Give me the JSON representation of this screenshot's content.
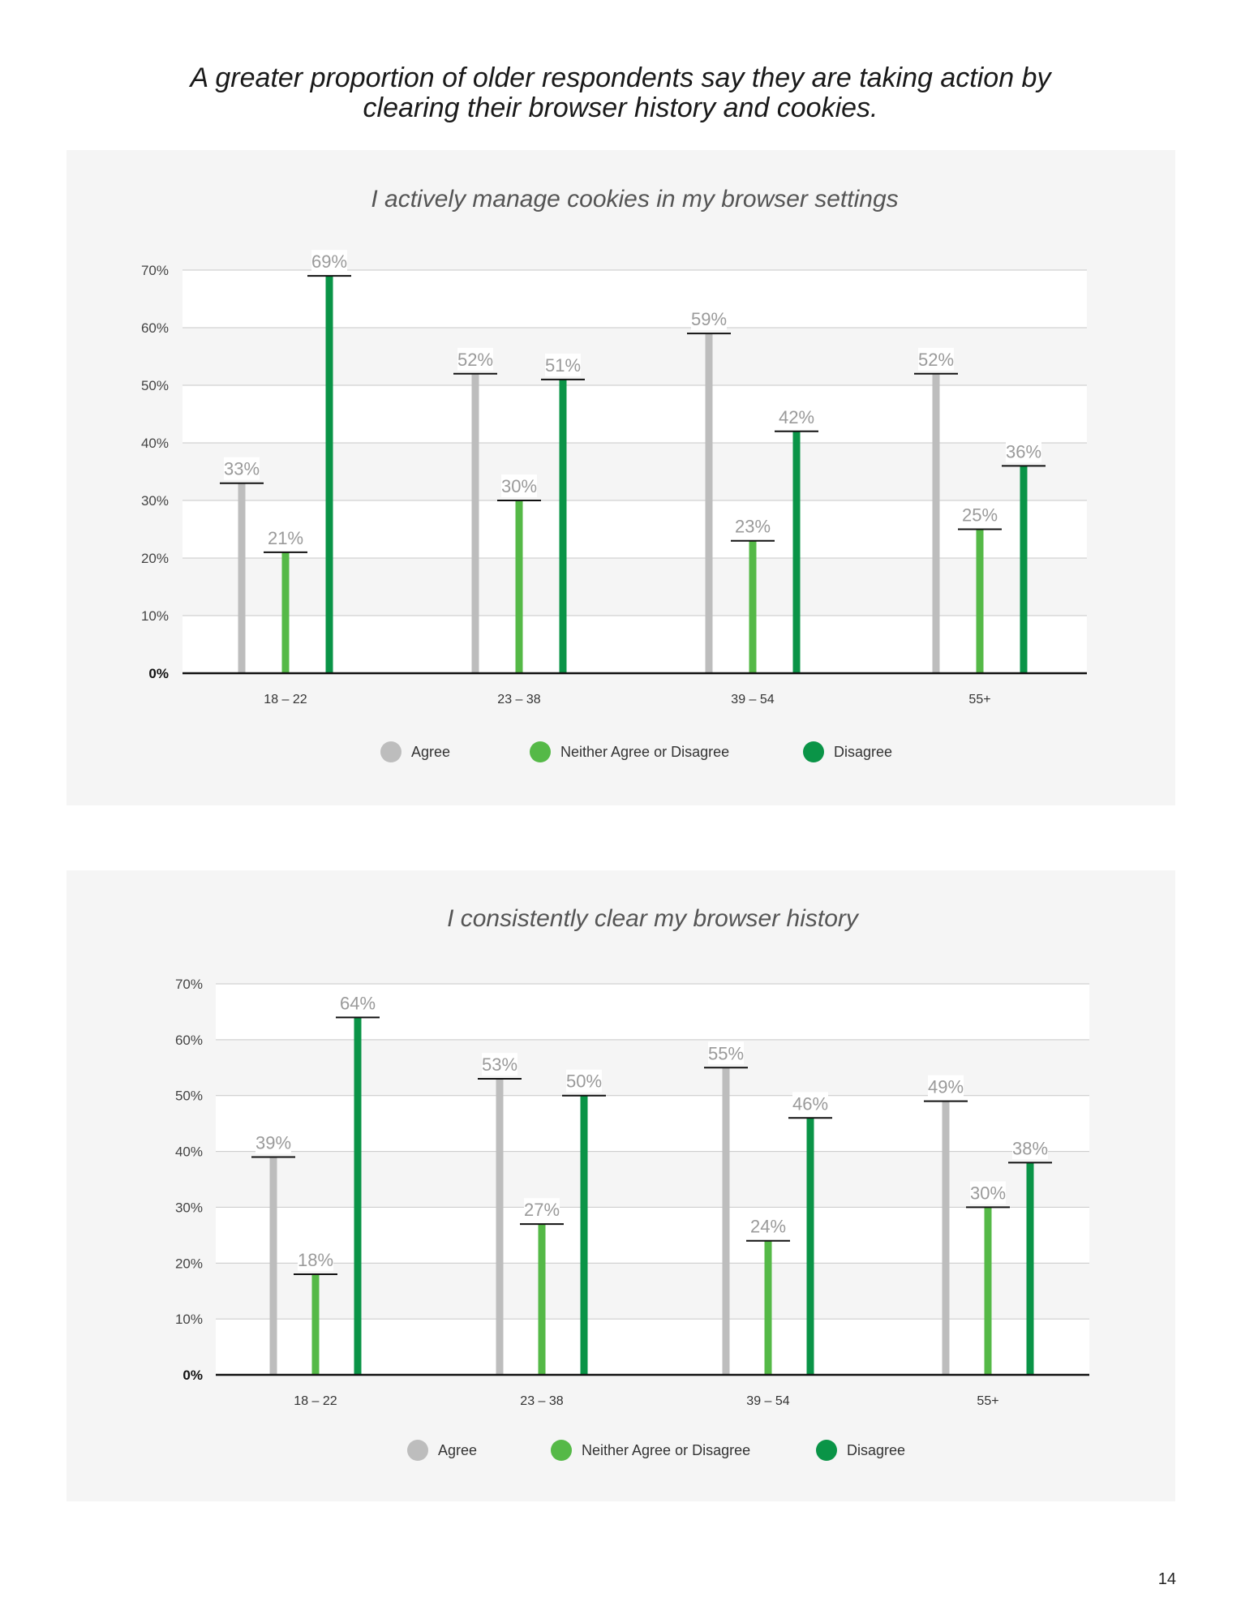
{
  "page": {
    "title_line1": "A greater proportion of older respondents say they are taking action by",
    "title_line2": "clearing their browser history and cookies.",
    "page_number": "14"
  },
  "colors": {
    "agree": "#bdbdbd",
    "neither": "#55b947",
    "disagree": "#0a9447"
  },
  "chart_data": [
    {
      "type": "bar",
      "title": "I actively manage cookies in my browser settings",
      "categories": [
        "18 – 22",
        "23 – 38",
        "39 – 54",
        "55+"
      ],
      "series": [
        {
          "name": "Agree",
          "values": [
            33,
            52,
            59,
            52
          ]
        },
        {
          "name": "Neither Agree or Disagree",
          "values": [
            21,
            30,
            23,
            25
          ]
        },
        {
          "name": "Disagree",
          "values": [
            69,
            51,
            42,
            36
          ]
        }
      ],
      "ylim": [
        0,
        70
      ],
      "yticks": [
        "0%",
        "10%",
        "20%",
        "30%",
        "40%",
        "50%",
        "60%",
        "70%"
      ],
      "unit": "%",
      "grid": true,
      "legend_position": "bottom"
    },
    {
      "type": "bar",
      "title": "I consistently clear my browser history",
      "categories": [
        "18 – 22",
        "23 – 38",
        "39 – 54",
        "55+"
      ],
      "series": [
        {
          "name": "Agree",
          "values": [
            39,
            53,
            55,
            49
          ]
        },
        {
          "name": "Neither Agree or Disagree",
          "values": [
            18,
            27,
            24,
            30
          ]
        },
        {
          "name": "Disagree",
          "values": [
            64,
            50,
            46,
            38
          ]
        }
      ],
      "ylim": [
        0,
        70
      ],
      "yticks": [
        "0%",
        "10%",
        "20%",
        "30%",
        "40%",
        "50%",
        "60%",
        "70%"
      ],
      "unit": "%",
      "grid": true,
      "legend_position": "bottom"
    }
  ]
}
